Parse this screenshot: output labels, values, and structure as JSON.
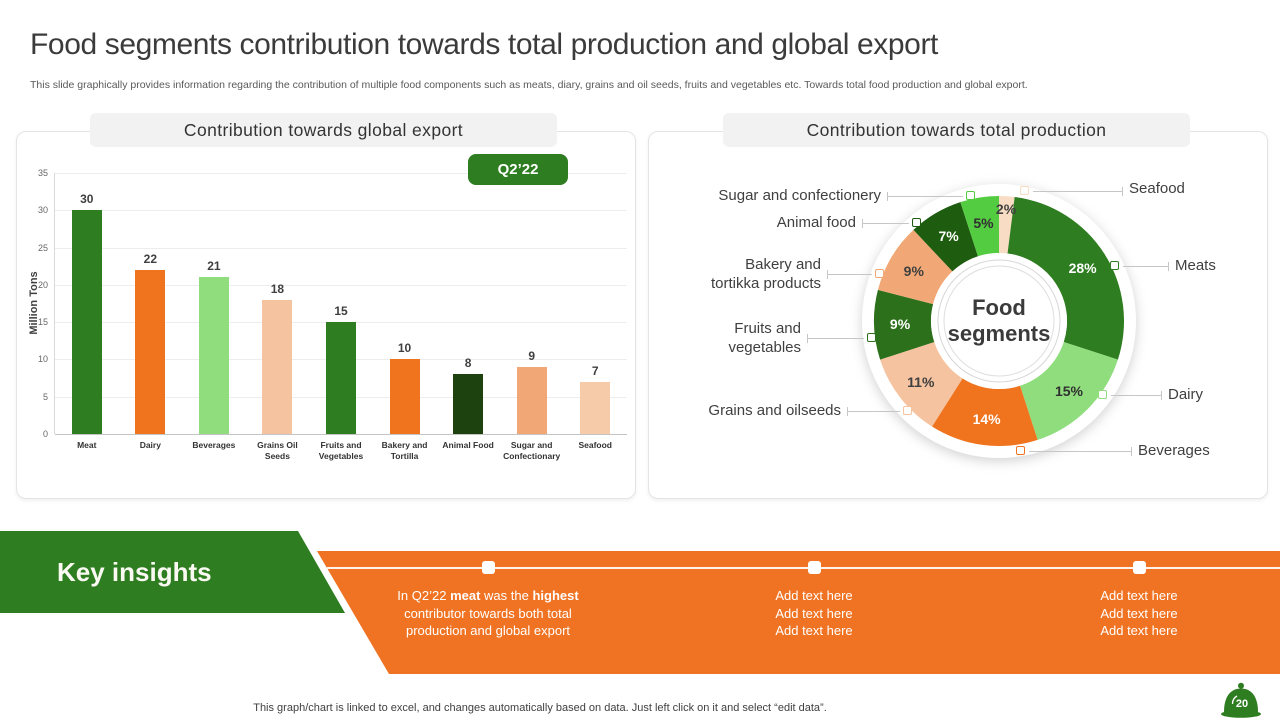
{
  "slide": {
    "title": "Food segments contribution towards total production and global export",
    "subtitle": "This slide graphically provides information regarding the contribution of multiple food components such as meats, diary, grains and oil seeds, fruits and vegetables etc. Towards total food production and global export.",
    "footer_note": "This graph/chart is linked to excel,  and changes automatically based on data. Just left click on it and select “edit data”.",
    "page_number": "20"
  },
  "colors": {
    "brand_green": "#2e7d20",
    "brand_orange": "#ef7322",
    "light_green": "#90dd7d",
    "peach": "#f6c3a0",
    "salmon": "#f2a876",
    "dark_green": "#1e5c10"
  },
  "export_panel": {
    "header": "Contribution towards global export"
  },
  "production_panel": {
    "header": "Contribution towards total production"
  },
  "key_insights": {
    "heading": "Key insights",
    "columns": [
      {
        "lines": [
          [
            [
              "In Q2’22 ",
              0
            ],
            [
              "meat",
              1
            ],
            [
              " was the ",
              0
            ],
            [
              "highest",
              1
            ]
          ],
          [
            [
              "contributor towards both total",
              0
            ]
          ],
          [
            [
              "production and global export",
              0
            ]
          ]
        ]
      },
      {
        "lines": [
          [
            [
              "Add text here",
              0
            ]
          ],
          [
            [
              "Add text here",
              0
            ]
          ],
          [
            [
              "Add text here",
              0
            ]
          ]
        ]
      },
      {
        "lines": [
          [
            [
              "Add text here",
              0
            ]
          ],
          [
            [
              "Add text here",
              0
            ]
          ],
          [
            [
              "Add text here",
              0
            ]
          ]
        ]
      }
    ]
  },
  "chart_data": [
    {
      "type": "bar",
      "title": "Contribution towards global export",
      "period_label": "Q2’22",
      "ylabel": "Million Tons",
      "xlabel": "",
      "ylim": [
        0,
        35
      ],
      "y_ticks": [
        0,
        5,
        10,
        15,
        20,
        25,
        30,
        35
      ],
      "grid": true,
      "categories": [
        "Meat",
        "Dairy",
        "Beverages",
        "Grains Oil Seeds",
        "Fruits and Vegetables",
        "Bakery and Tortilla",
        "Animal Food",
        "Sugar and Confectionary",
        "Seafood"
      ],
      "values": [
        30,
        22,
        21,
        18,
        15,
        10,
        8,
        9,
        7
      ],
      "bar_colors": [
        "#2e7d20",
        "#f0731e",
        "#90dd7d",
        "#f6c3a0",
        "#2e7d20",
        "#f0731e",
        "#1e420f",
        "#f2a876",
        "#f5cba9"
      ]
    },
    {
      "type": "pie",
      "donut": true,
      "title": "Contribution towards total production",
      "center_label": "Food segments",
      "slices": [
        {
          "label": "Seafood",
          "value": 2,
          "color": "#f8dcc3",
          "text_color": "#3f3f3f"
        },
        {
          "label": "Meats",
          "value": 28,
          "color": "#2e7d20",
          "text_color": "#ffffff"
        },
        {
          "label": "Dairy",
          "value": 15,
          "color": "#90dd7d",
          "text_color": "#303030"
        },
        {
          "label": "Beverages",
          "value": 14,
          "color": "#f0731e",
          "text_color": "#ffffff"
        },
        {
          "label": "Grains and oilseeds",
          "value": 11,
          "color": "#f6c3a0",
          "text_color": "#3f3f3f"
        },
        {
          "label": "Fruits and vegetables",
          "value": 9,
          "color": "#2d701c",
          "text_color": "#ffffff"
        },
        {
          "label": "Bakery and tortikka products",
          "value": 9,
          "color": "#f2a876",
          "text_color": "#3f3f3f"
        },
        {
          "label": "Animal food",
          "value": 7,
          "color": "#1e5c10",
          "text_color": "#ffffff"
        },
        {
          "label": "Sugar and confectionery",
          "value": 5,
          "color": "#54cc41",
          "text_color": "#303030"
        }
      ]
    }
  ]
}
